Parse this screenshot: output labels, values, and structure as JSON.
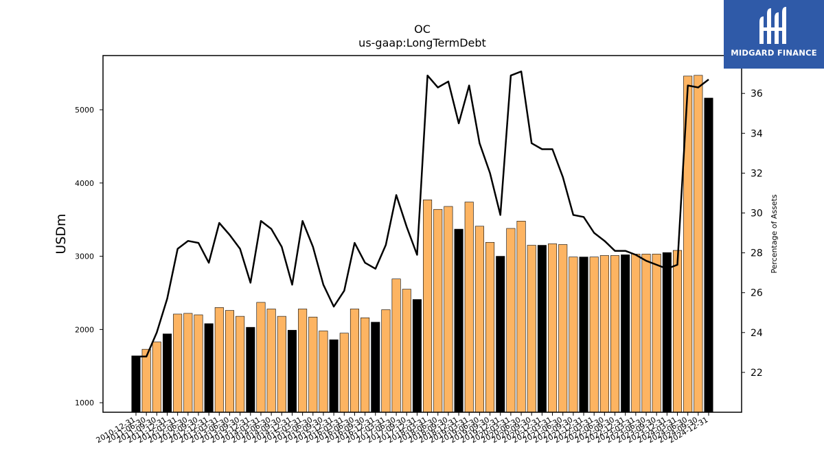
{
  "chart_data": {
    "type": "bar",
    "title": "OC",
    "subtitle": "us-gaap:LongTermDebt",
    "ylabel": "USDm",
    "y2label": "Percentage of Assets",
    "ylim": [
      870,
      5740
    ],
    "y2lim": [
      20.0,
      37.9
    ],
    "yticks": [
      1000,
      2000,
      3000,
      4000,
      5000
    ],
    "y2ticks": [
      22,
      24,
      26,
      28,
      30,
      32,
      34,
      36
    ],
    "bar_colors": {
      "annual": "#000000",
      "quarterly": "#fdb462"
    },
    "line_color": "#000000",
    "categories": [
      "2010-12-31",
      "2011-06-30",
      "2011-09-30",
      "2011-12-31",
      "2012-03-31",
      "2012-06-30",
      "2012-09-30",
      "2012-12-31",
      "2013-03-31",
      "2013-06-30",
      "2013-09-30",
      "2013-12-31",
      "2014-03-31",
      "2014-06-30",
      "2014-09-30",
      "2014-12-31",
      "2015-03-31",
      "2015-06-30",
      "2015-09-30",
      "2015-12-31",
      "2016-03-31",
      "2016-06-30",
      "2016-09-30",
      "2016-12-31",
      "2017-03-31",
      "2017-06-30",
      "2017-09-30",
      "2017-12-31",
      "2018-03-31",
      "2018-06-30",
      "2018-09-30",
      "2018-12-31",
      "2019-03-31",
      "2019-06-30",
      "2019-09-30",
      "2019-12-31",
      "2020-03-31",
      "2020-06-30",
      "2020-09-30",
      "2020-12-31",
      "2021-03-31",
      "2021-06-30",
      "2021-09-30",
      "2021-12-31",
      "2022-03-31",
      "2022-06-30",
      "2022-09-30",
      "2022-12-31",
      "2023-03-31",
      "2023-06-30",
      "2023-09-30",
      "2023-12-31",
      "2024-03-31",
      "2024-06-30",
      "2024-09-30",
      "2024-12-31"
    ],
    "annual": [
      true,
      false,
      false,
      true,
      false,
      false,
      false,
      true,
      false,
      false,
      false,
      true,
      false,
      false,
      false,
      true,
      false,
      false,
      false,
      true,
      false,
      false,
      false,
      true,
      false,
      false,
      false,
      true,
      false,
      false,
      false,
      true,
      false,
      false,
      false,
      true,
      false,
      false,
      false,
      true,
      false,
      false,
      false,
      true,
      false,
      false,
      false,
      true,
      false,
      false,
      false,
      true,
      false,
      false,
      false,
      true
    ],
    "series": [
      {
        "name": "LongTermDebt",
        "values": [
          1640,
          1730,
          1830,
          1940,
          2210,
          2220,
          2200,
          2080,
          2300,
          2260,
          2180,
          2030,
          2370,
          2280,
          2180,
          1990,
          2280,
          2170,
          1980,
          1860,
          1950,
          2280,
          2160,
          2100,
          2270,
          2690,
          2550,
          2410,
          3770,
          3640,
          3680,
          3370,
          3740,
          3410,
          3190,
          3000,
          3380,
          3480,
          3150,
          3150,
          3170,
          3160,
          2990,
          2990,
          2990,
          3010,
          3010,
          3020,
          3030,
          3030,
          3030,
          3050,
          3080,
          5460,
          5470,
          5160
        ]
      },
      {
        "name": "Percentage of Assets",
        "axis": "right",
        "values": [
          22.8,
          22.8,
          24.0,
          25.7,
          28.2,
          28.6,
          28.5,
          27.5,
          29.5,
          28.9,
          28.2,
          26.5,
          29.6,
          29.2,
          28.3,
          26.4,
          29.6,
          28.3,
          26.4,
          25.3,
          26.1,
          28.5,
          27.5,
          27.2,
          28.4,
          30.9,
          29.3,
          27.9,
          36.9,
          36.3,
          36.6,
          34.5,
          36.4,
          33.5,
          32.0,
          29.9,
          36.9,
          37.1,
          33.5,
          33.2,
          33.2,
          31.8,
          29.9,
          29.8,
          29.0,
          28.6,
          28.1,
          28.1,
          27.9,
          27.6,
          27.4,
          27.2,
          27.4,
          36.4,
          36.3,
          36.7
        ]
      }
    ]
  },
  "logo": {
    "text": "MIDGARD FINANCE"
  }
}
